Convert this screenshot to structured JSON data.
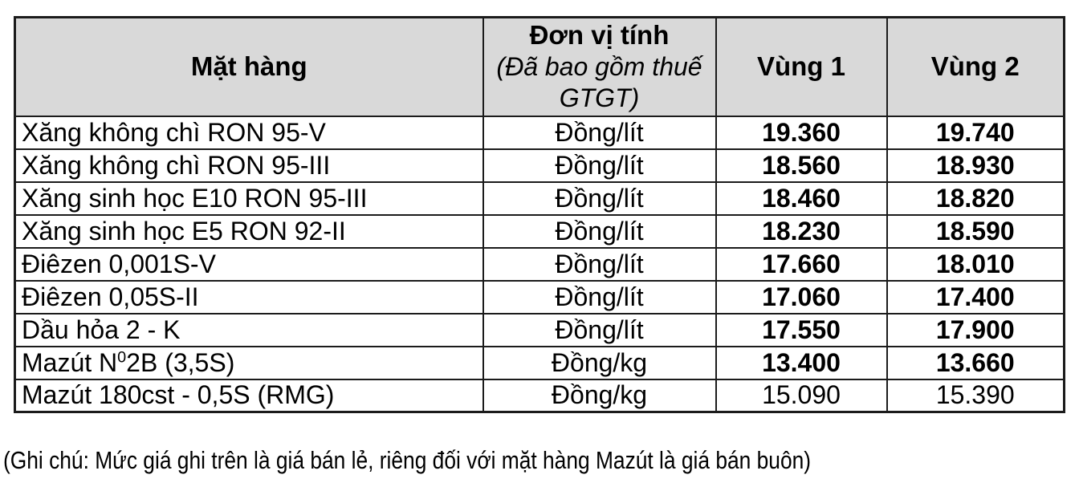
{
  "table": {
    "header": {
      "product": "Mặt hàng",
      "unit_title": "Đơn vị tính",
      "unit_subtitle": "(Đã bao gồm thuế GTGT)",
      "region1": "Vùng 1",
      "region2": "Vùng 2"
    },
    "rows": [
      {
        "name": "Xăng không chì RON 95-V",
        "unit": "Đồng/lít",
        "region1": "19.360",
        "region2": "19.740",
        "bold_values": true
      },
      {
        "name": "Xăng không chì RON 95-III",
        "unit": "Đồng/lít",
        "region1": "18.560",
        "region2": "18.930",
        "bold_values": true
      },
      {
        "name": "Xăng sinh học E10 RON 95-III",
        "unit": "Đồng/lít",
        "region1": "18.460",
        "region2": "18.820",
        "bold_values": true
      },
      {
        "name": "Xăng sinh học E5 RON 92-II",
        "unit": "Đồng/lít",
        "region1": "18.230",
        "region2": "18.590",
        "bold_values": true
      },
      {
        "name": "Điêzen 0,001S-V",
        "unit": "Đồng/lít",
        "region1": "17.660",
        "region2": "18.010",
        "bold_values": true
      },
      {
        "name": "Điêzen 0,05S-II",
        "unit": "Đồng/lít",
        "region1": "17.060",
        "region2": "17.400",
        "bold_values": true
      },
      {
        "name": "Dầu hỏa 2 - K",
        "unit": "Đồng/lít",
        "region1": "17.550",
        "region2": "17.900",
        "bold_values": true
      },
      {
        "name": "Mazút N02B (3,5S)",
        "name_parts": {
          "pre": "Mazút N",
          "sup": "0",
          "post": "2B (3,5S)"
        },
        "unit": "Đồng/kg",
        "region1": "13.400",
        "region2": "13.660",
        "bold_values": true
      },
      {
        "name": "Mazút 180cst - 0,5S (RMG)",
        "unit": "Đồng/kg",
        "region1": "15.090",
        "region2": "15.390",
        "bold_values": false
      }
    ],
    "note": "(Ghi chú: Mức giá ghi trên là giá bán lẻ, riêng đối với mặt hàng Mazút là giá bán buôn)"
  },
  "colors": {
    "header_bg": "#d9d9d9",
    "border": "#1b1b1b",
    "text": "#000000"
  }
}
